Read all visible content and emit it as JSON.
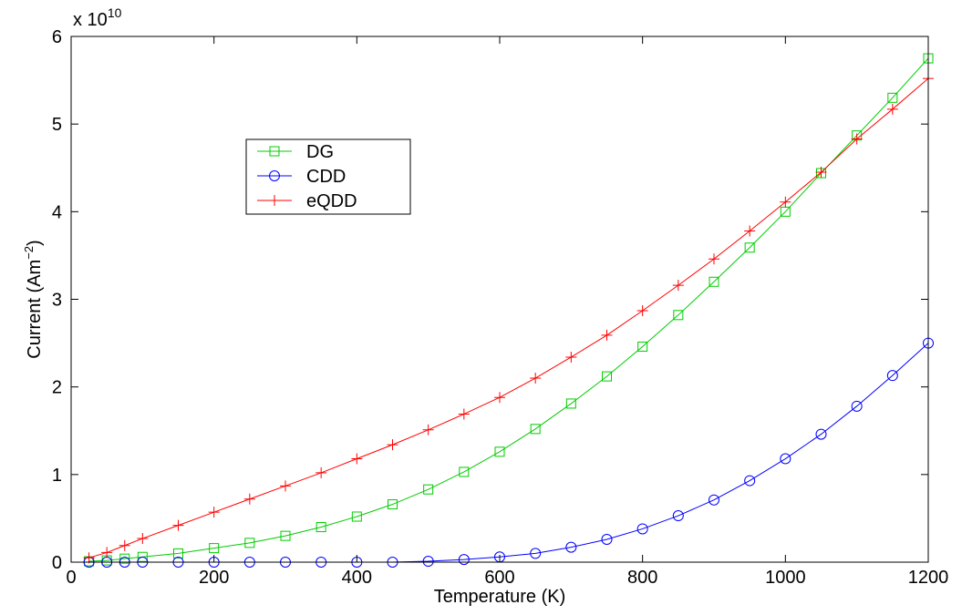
{
  "chart_data": {
    "type": "line",
    "xlabel": "Temperature (K)",
    "ylabel_main": "Current (Am",
    "ylabel_sup": "−2",
    "ylabel_close": ")",
    "y_multiplier_base": "x 10",
    "y_multiplier_exp": "10",
    "xlim": [
      0,
      1200
    ],
    "ylim": [
      0,
      6
    ],
    "x_ticks": [
      0,
      200,
      400,
      600,
      800,
      1000,
      1200
    ],
    "y_ticks": [
      0,
      1,
      2,
      3,
      4,
      5,
      6
    ],
    "grid": false,
    "legend_position": "upper-left-inside",
    "series": [
      {
        "name": "DG",
        "color": "#00cc00",
        "marker": "square",
        "x": [
          25,
          50,
          75,
          100,
          150,
          200,
          250,
          300,
          350,
          400,
          450,
          500,
          550,
          600,
          650,
          700,
          750,
          800,
          850,
          900,
          950,
          1000,
          1050,
          1100,
          1150,
          1200
        ],
        "y": [
          0.01,
          0.02,
          0.04,
          0.06,
          0.1,
          0.16,
          0.22,
          0.3,
          0.4,
          0.52,
          0.66,
          0.83,
          1.03,
          1.26,
          1.52,
          1.81,
          2.12,
          2.46,
          2.82,
          3.2,
          3.59,
          4.0,
          4.44,
          4.87,
          5.3,
          5.75
        ]
      },
      {
        "name": "CDD",
        "color": "#0000ff",
        "marker": "circle",
        "x": [
          25,
          50,
          75,
          100,
          150,
          200,
          250,
          300,
          350,
          400,
          450,
          500,
          550,
          600,
          650,
          700,
          750,
          800,
          850,
          900,
          950,
          1000,
          1050,
          1100,
          1150,
          1200
        ],
        "y": [
          0,
          0,
          0,
          0,
          0,
          0,
          0,
          0,
          0,
          0,
          0,
          0.01,
          0.03,
          0.06,
          0.1,
          0.17,
          0.26,
          0.38,
          0.53,
          0.71,
          0.93,
          1.18,
          1.46,
          1.78,
          2.13,
          2.5
        ]
      },
      {
        "name": "eQDD",
        "color": "#ff0000",
        "marker": "plus",
        "x": [
          25,
          50,
          75,
          100,
          150,
          200,
          250,
          300,
          350,
          400,
          450,
          500,
          550,
          600,
          650,
          700,
          750,
          800,
          850,
          900,
          950,
          1000,
          1050,
          1100,
          1150,
          1200
        ],
        "y": [
          0.05,
          0.11,
          0.19,
          0.27,
          0.42,
          0.57,
          0.72,
          0.87,
          1.02,
          1.18,
          1.34,
          1.51,
          1.69,
          1.88,
          2.1,
          2.34,
          2.59,
          2.87,
          3.16,
          3.46,
          3.78,
          4.11,
          4.45,
          4.83,
          5.17,
          5.52
        ]
      }
    ]
  }
}
